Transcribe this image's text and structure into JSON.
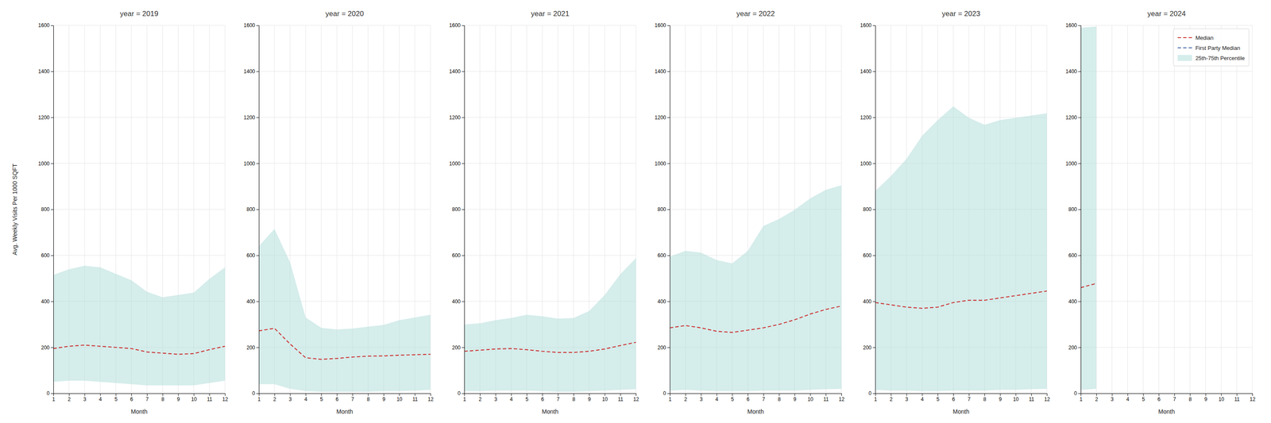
{
  "chart_data": [
    {
      "type": "line",
      "title": "year = 2019",
      "xlabel": "Month",
      "ylabel": "Avg. Weekly Visits Per 1000 SQFT",
      "x": [
        1,
        2,
        3,
        4,
        5,
        6,
        7,
        8,
        9,
        10,
        11,
        12
      ],
      "series": [
        {
          "name": "Median",
          "type": "line",
          "color": "#cc3333",
          "line_style": "dashed",
          "values": [
            195,
            205,
            210,
            205,
            200,
            195,
            180,
            175,
            170,
            173,
            190,
            205
          ]
        },
        {
          "name": "25th-75th Percentile",
          "type": "band",
          "color": "#b2dfdb",
          "lower": [
            50,
            55,
            55,
            50,
            45,
            40,
            35,
            35,
            35,
            35,
            45,
            55
          ],
          "upper": [
            515,
            540,
            555,
            548,
            520,
            492,
            442,
            418,
            428,
            438,
            498,
            548
          ]
        }
      ],
      "xlim": [
        1,
        12
      ],
      "xticks": [
        1,
        2,
        3,
        4,
        5,
        6,
        7,
        8,
        9,
        10,
        11,
        12
      ],
      "ylim": [
        0,
        1600
      ],
      "yticks": [
        0,
        200,
        400,
        600,
        800,
        1000,
        1200,
        1400,
        1600
      ],
      "grid": true
    },
    {
      "type": "line",
      "title": "year = 2020",
      "xlabel": "Month",
      "x": [
        1,
        2,
        3,
        4,
        5,
        6,
        7,
        8,
        9,
        10,
        11,
        12
      ],
      "series": [
        {
          "name": "Median",
          "type": "line",
          "color": "#cc3333",
          "line_style": "dashed",
          "values": [
            272,
            283,
            215,
            155,
            148,
            152,
            158,
            162,
            163,
            166,
            168,
            170
          ]
        },
        {
          "name": "25th-75th Percentile",
          "type": "band",
          "color": "#b2dfdb",
          "lower": [
            40,
            40,
            20,
            10,
            8,
            8,
            8,
            8,
            10,
            10,
            12,
            15
          ],
          "upper": [
            640,
            715,
            570,
            330,
            285,
            278,
            282,
            290,
            298,
            318,
            330,
            342
          ]
        }
      ],
      "xlim": [
        1,
        12
      ],
      "xticks": [
        1,
        2,
        3,
        4,
        5,
        6,
        7,
        8,
        9,
        10,
        11,
        12
      ],
      "ylim": [
        0,
        1600
      ],
      "yticks": [
        0,
        200,
        400,
        600,
        800,
        1000,
        1200,
        1400,
        1600
      ],
      "grid": true
    },
    {
      "type": "line",
      "title": "year = 2021",
      "xlabel": "Month",
      "x": [
        1,
        2,
        3,
        4,
        5,
        6,
        7,
        8,
        9,
        10,
        11,
        12
      ],
      "series": [
        {
          "name": "Median",
          "type": "line",
          "color": "#cc3333",
          "line_style": "dashed",
          "values": [
            183,
            188,
            193,
            195,
            190,
            183,
            178,
            178,
            183,
            193,
            208,
            222
          ]
        },
        {
          "name": "25th-75th Percentile",
          "type": "band",
          "color": "#b2dfdb",
          "lower": [
            10,
            10,
            12,
            12,
            12,
            10,
            8,
            8,
            10,
            12,
            15,
            18
          ],
          "upper": [
            300,
            305,
            318,
            328,
            342,
            335,
            325,
            328,
            358,
            428,
            518,
            588
          ]
        }
      ],
      "xlim": [
        1,
        12
      ],
      "xticks": [
        1,
        2,
        3,
        4,
        5,
        6,
        7,
        8,
        9,
        10,
        11,
        12
      ],
      "ylim": [
        0,
        1600
      ],
      "yticks": [
        0,
        200,
        400,
        600,
        800,
        1000,
        1200,
        1400,
        1600
      ],
      "grid": true
    },
    {
      "type": "line",
      "title": "year = 2022",
      "xlabel": "Month",
      "x": [
        1,
        2,
        3,
        4,
        5,
        6,
        7,
        8,
        9,
        10,
        11,
        12
      ],
      "series": [
        {
          "name": "Median",
          "type": "line",
          "color": "#cc3333",
          "line_style": "dashed",
          "values": [
            285,
            295,
            285,
            270,
            265,
            275,
            285,
            300,
            320,
            345,
            365,
            380
          ]
        },
        {
          "name": "25th-75th Percentile",
          "type": "band",
          "color": "#b2dfdb",
          "lower": [
            12,
            15,
            12,
            10,
            10,
            10,
            12,
            12,
            12,
            15,
            18,
            20
          ],
          "upper": [
            595,
            620,
            612,
            580,
            565,
            620,
            728,
            758,
            798,
            848,
            885,
            905
          ]
        }
      ],
      "xlim": [
        1,
        12
      ],
      "xticks": [
        1,
        2,
        3,
        4,
        5,
        6,
        7,
        8,
        9,
        10,
        11,
        12
      ],
      "ylim": [
        0,
        1600
      ],
      "yticks": [
        0,
        200,
        400,
        600,
        800,
        1000,
        1200,
        1400,
        1600
      ],
      "grid": true
    },
    {
      "type": "line",
      "title": "year = 2023",
      "xlabel": "Month",
      "x": [
        1,
        2,
        3,
        4,
        5,
        6,
        7,
        8,
        9,
        10,
        11,
        12
      ],
      "series": [
        {
          "name": "Median",
          "type": "line",
          "color": "#cc3333",
          "line_style": "dashed",
          "values": [
            395,
            385,
            375,
            370,
            375,
            395,
            405,
            405,
            415,
            425,
            435,
            445
          ]
        },
        {
          "name": "25th-75th Percentile",
          "type": "band",
          "color": "#b2dfdb",
          "lower": [
            15,
            12,
            12,
            10,
            10,
            12,
            12,
            12,
            15,
            15,
            18,
            20
          ],
          "upper": [
            880,
            945,
            1020,
            1120,
            1188,
            1248,
            1198,
            1168,
            1188,
            1198,
            1208,
            1218
          ]
        }
      ],
      "xlim": [
        1,
        12
      ],
      "xticks": [
        1,
        2,
        3,
        4,
        5,
        6,
        7,
        8,
        9,
        10,
        11,
        12
      ],
      "ylim": [
        0,
        1600
      ],
      "yticks": [
        0,
        200,
        400,
        600,
        800,
        1000,
        1200,
        1400,
        1600
      ],
      "grid": true
    },
    {
      "type": "line",
      "title": "year = 2024",
      "xlabel": "Month",
      "x": [
        1,
        2
      ],
      "series": [
        {
          "name": "Median",
          "type": "line",
          "color": "#cc3333",
          "line_style": "dashed",
          "values": [
            460,
            478
          ]
        },
        {
          "name": "First Party Median",
          "type": "line",
          "color": "#4466aa",
          "line_style": "dashed",
          "values": [
            null,
            null
          ]
        },
        {
          "name": "25th-75th Percentile",
          "type": "band",
          "color": "#b2dfdb",
          "lower": [
            15,
            20
          ],
          "upper": [
            1590,
            1595
          ]
        }
      ],
      "xlim": [
        1,
        12
      ],
      "xticks": [
        1,
        2,
        3,
        4,
        5,
        6,
        7,
        8,
        9,
        10,
        11,
        12
      ],
      "ylim": [
        0,
        1600
      ],
      "yticks": [
        0,
        200,
        400,
        600,
        800,
        1000,
        1200,
        1400,
        1600
      ],
      "grid": true,
      "legend": "upper right"
    }
  ]
}
